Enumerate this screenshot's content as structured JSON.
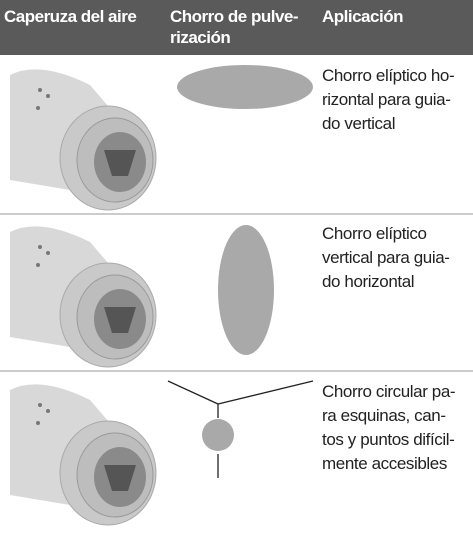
{
  "header": {
    "caperuza": "Caperuza del aire",
    "chorro": [
      "Chorro de pulve-",
      "rización"
    ],
    "aplicacion": "Aplicación"
  },
  "rows": [
    {
      "application": [
        "Chorro elíptico ho-",
        "rizontal para guia-",
        "do vertical"
      ]
    },
    {
      "application": [
        "Chorro elíptico",
        "vertical para guia-",
        "do horizontal"
      ]
    },
    {
      "application": [
        "Chorro circular pa-",
        "ra esquinas, can-",
        "tos y puntos difícil-",
        "mente accesibles"
      ]
    }
  ]
}
